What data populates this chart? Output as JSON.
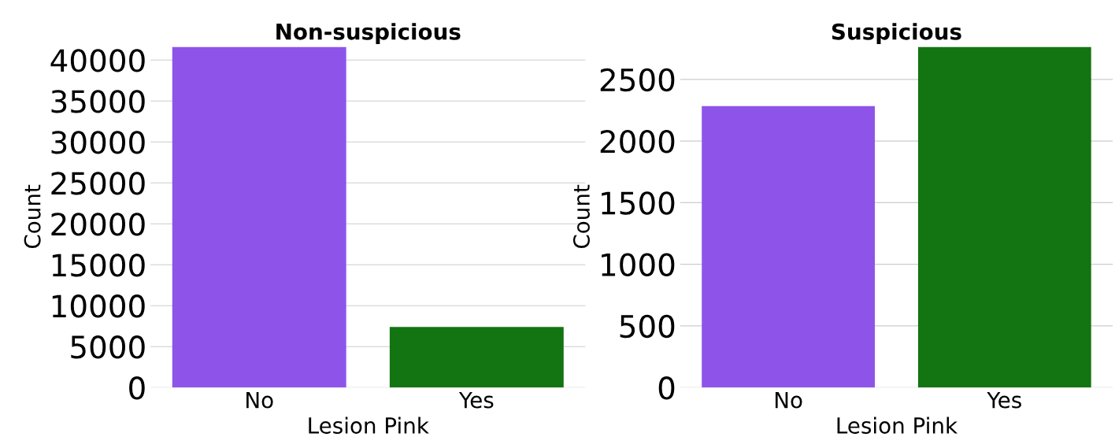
{
  "chart_data": [
    {
      "type": "bar",
      "title": "Non-suspicious",
      "xlabel": "Lesion Pink",
      "ylabel": "Count",
      "categories": [
        "No",
        "Yes"
      ],
      "values": [
        41600,
        7400
      ],
      "colors": [
        "#8e54e9",
        "#137412"
      ],
      "ylim": [
        0,
        41700
      ],
      "yticks": [
        0,
        5000,
        10000,
        15000,
        20000,
        25000,
        30000,
        35000,
        40000
      ],
      "grid": "y"
    },
    {
      "type": "bar",
      "title": "Suspicious",
      "xlabel": "Lesion Pink",
      "ylabel": "Count",
      "categories": [
        "No",
        "Yes"
      ],
      "values": [
        2283,
        2763
      ],
      "colors": [
        "#8e54e9",
        "#137412"
      ],
      "ylim": [
        0,
        2770
      ],
      "yticks": [
        0,
        500,
        1000,
        1500,
        2000,
        2500
      ],
      "grid": "y"
    }
  ]
}
